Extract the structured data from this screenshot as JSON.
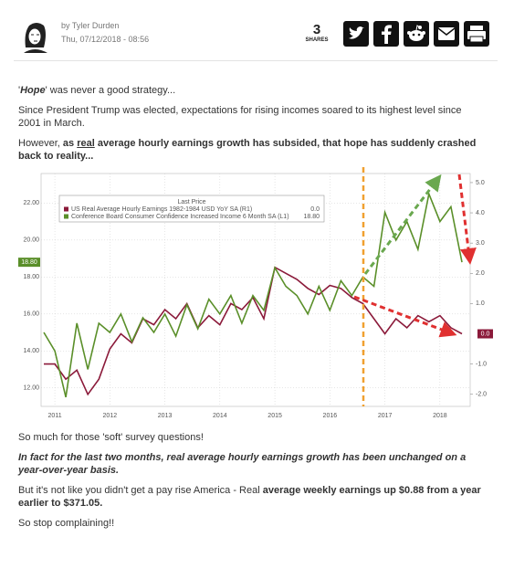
{
  "header": {
    "author": "by Tyler Durden",
    "date": "Thu, 07/12/2018 - 08:56",
    "share_count": 3,
    "share_label": "SHARES"
  },
  "article": {
    "paragraphs": [
      [
        "'",
        "Hope",
        "' was never a good strategy..."
      ],
      [
        "Since President Trump was elected, expectations for rising incomes soared to its highest level since 2001 in March."
      ],
      [
        "However, ",
        "as ",
        "real",
        " average hourly earnings growth has subsided, that hope has suddenly crashed back to reality..."
      ],
      [
        "So much for those 'soft' survey questions!"
      ],
      [
        "In fact for the last two months, real average hourly earnings growth has been unchanged on a year-over-year basis."
      ],
      [
        "But it's not like you didn't get a pay rise America - Real ",
        "average weekly earnings up $0.88 from a year earlier to $371.05."
      ],
      [
        "So stop complaining!!"
      ]
    ]
  },
  "chart_data": {
    "type": "line",
    "legend_title": "Last Price",
    "x": [
      2010.8,
      2011,
      2011.2,
      2011.4,
      2011.6,
      2011.8,
      2012,
      2012.2,
      2012.4,
      2012.6,
      2012.8,
      2013,
      2013.2,
      2013.4,
      2013.6,
      2013.8,
      2014,
      2014.2,
      2014.4,
      2014.6,
      2014.8,
      2015,
      2015.2,
      2015.4,
      2015.6,
      2015.8,
      2016,
      2016.2,
      2016.4,
      2016.6,
      2016.8,
      2017,
      2017.2,
      2017.4,
      2017.6,
      2017.8,
      2018,
      2018.2,
      2018.4
    ],
    "series": [
      {
        "name": "US Real Average Hourly Earnings 1982-1984 USD YoY SA  (R1)",
        "color": "#8b1a3a",
        "axis": "y2",
        "last": {
          "value": 0,
          "label": "0.0"
        },
        "values": [
          -1.0,
          -1.0,
          -1.5,
          -1.2,
          -2.0,
          -1.5,
          -0.5,
          0.0,
          -0.3,
          0.5,
          0.3,
          0.8,
          0.5,
          1.0,
          0.2,
          0.6,
          0.3,
          1.0,
          0.8,
          1.2,
          0.5,
          2.2,
          2.0,
          1.8,
          1.5,
          1.3,
          1.6,
          1.5,
          1.2,
          1.0,
          0.5,
          0.0,
          0.5,
          0.2,
          0.6,
          0.4,
          0.6,
          0.2,
          0.0
        ]
      },
      {
        "name": "Conference Board Consumer Confidence Increased Income 6 Month SA  (L1)",
        "color": "#5a8f29",
        "last": {
          "value": 18.8,
          "label": "18.80"
        },
        "values": [
          15.0,
          14.0,
          11.5,
          15.5,
          13.0,
          15.5,
          15.0,
          16.0,
          14.5,
          15.8,
          15.0,
          16.0,
          14.8,
          16.5,
          15.2,
          16.8,
          16.0,
          17.0,
          15.5,
          17.0,
          16.2,
          18.5,
          17.5,
          17.0,
          16.0,
          17.5,
          16.2,
          17.8,
          17.0,
          18.0,
          17.5,
          21.5,
          20.0,
          21.0,
          19.5,
          22.5,
          21.0,
          21.8,
          18.8
        ]
      }
    ],
    "xlim": [
      2010.75,
      2018.55
    ],
    "xticks": [
      2011,
      2012,
      2013,
      2014,
      2015,
      2016,
      2017,
      2018
    ],
    "ylim": [
      11.0,
      23.6
    ],
    "yticks": [
      {
        "value": 12,
        "label": "12.00"
      },
      {
        "value": 14,
        "label": "14.00"
      },
      {
        "value": 16,
        "label": "16.00"
      },
      {
        "value": 18,
        "label": "18.00"
      },
      {
        "value": 20,
        "label": "20.00"
      },
      {
        "value": 22,
        "label": "22.00"
      }
    ],
    "y2lim": [
      -2.4,
      5.3
    ],
    "y2ticks": [
      {
        "value": -2,
        "label": "-2.0"
      },
      {
        "value": -1,
        "label": "-1.0"
      },
      {
        "value": 1,
        "label": "1.0"
      },
      {
        "value": 2,
        "label": "2.0"
      },
      {
        "value": 3,
        "label": "3.0"
      },
      {
        "value": 4,
        "label": "4.0"
      },
      {
        "value": 5,
        "label": "5.0"
      }
    ],
    "grid": true
  }
}
